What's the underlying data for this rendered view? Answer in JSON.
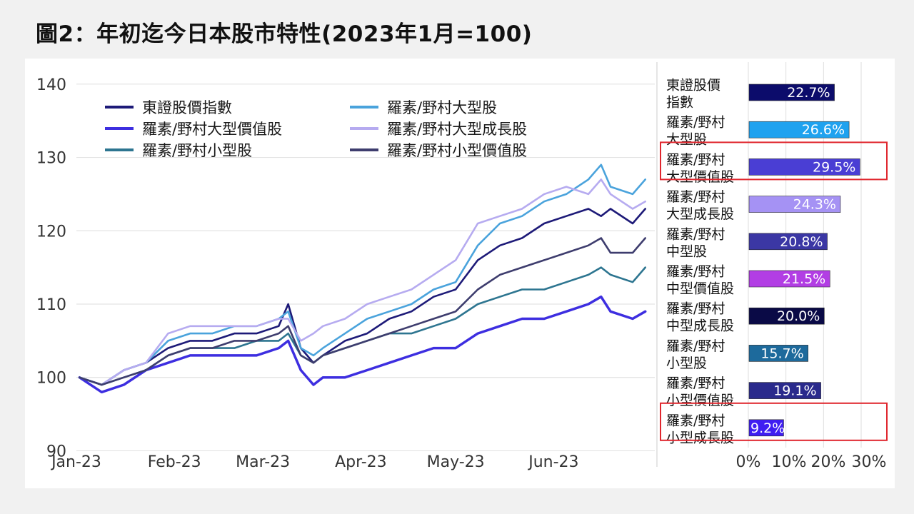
{
  "title": "圖2：年初迄今日本股市特性(2023年1月=100)",
  "chart_data": [
    {
      "type": "line",
      "y_range": [
        88,
        143
      ],
      "y_ticks": [
        90,
        100,
        110,
        120,
        130,
        140
      ],
      "y_tick_labels": [
        "90",
        "100",
        "110",
        "120",
        "130",
        "140"
      ],
      "x_tick_labels": [
        "Jan-23",
        "Feb-23",
        "Mar-23",
        "Apr-23",
        "May-23",
        "Jun-23"
      ],
      "x_dates": [
        "2023-01-02",
        "2023-01-09",
        "2023-01-16",
        "2023-01-23",
        "2023-01-30",
        "2023-02-06",
        "2023-02-13",
        "2023-02-20",
        "2023-02-27",
        "2023-03-06",
        "2023-03-09",
        "2023-03-13",
        "2023-03-17",
        "2023-03-20",
        "2023-03-27",
        "2023-04-03",
        "2023-04-10",
        "2023-04-17",
        "2023-04-24",
        "2023-05-01",
        "2023-05-08",
        "2023-05-15",
        "2023-05-22",
        "2023-05-29",
        "2023-06-05",
        "2023-06-12",
        "2023-06-16",
        "2023-06-19",
        "2023-06-26",
        "2023-06-30"
      ],
      "grid": "horizontal",
      "legend_position": "top-left",
      "series": [
        {
          "name": "東證股價指數",
          "color": "#1d1a78",
          "values": [
            100,
            99,
            101,
            102,
            104,
            105,
            105,
            106,
            106,
            107,
            110,
            104,
            102,
            103,
            105,
            106,
            108,
            109,
            111,
            112,
            116,
            118,
            119,
            121,
            122,
            123,
            122,
            123,
            121,
            123
          ]
        },
        {
          "name": "羅素/野村大型股",
          "color": "#4aa3dc",
          "values": [
            100,
            99,
            101,
            102,
            105,
            106,
            106,
            107,
            107,
            108,
            109,
            104,
            103,
            104,
            106,
            108,
            109,
            110,
            112,
            113,
            118,
            121,
            122,
            124,
            125,
            127,
            129,
            126,
            125,
            127
          ]
        },
        {
          "name": "羅素/野村大型價值股",
          "color": "#3d2ee0",
          "values": [
            100,
            98,
            99,
            101,
            102,
            103,
            103,
            103,
            103,
            104,
            105,
            101,
            99,
            100,
            100,
            101,
            102,
            103,
            104,
            104,
            106,
            107,
            108,
            108,
            109,
            110,
            111,
            109,
            108,
            109
          ]
        },
        {
          "name": "羅素/野村大型成長股",
          "color": "#b6abf0",
          "values": [
            100,
            99,
            101,
            102,
            106,
            107,
            107,
            107,
            107,
            108,
            108,
            105,
            106,
            107,
            108,
            110,
            111,
            112,
            114,
            116,
            121,
            122,
            123,
            125,
            126,
            125,
            127,
            125,
            123,
            124
          ]
        },
        {
          "name": "羅素/野村小型股",
          "color": "#2d7590",
          "values": [
            100,
            99,
            100,
            101,
            103,
            104,
            104,
            104,
            105,
            105,
            106,
            103,
            102,
            103,
            104,
            105,
            106,
            106,
            107,
            108,
            110,
            111,
            112,
            112,
            113,
            114,
            115,
            114,
            113,
            115
          ]
        },
        {
          "name": "羅素/野村小型價值股",
          "color": "#3e3d6e",
          "values": [
            100,
            99,
            100,
            101,
            103,
            104,
            104,
            105,
            105,
            106,
            107,
            103,
            102,
            103,
            104,
            105,
            106,
            107,
            108,
            109,
            112,
            114,
            115,
            116,
            117,
            118,
            119,
            117,
            117,
            119
          ]
        }
      ]
    },
    {
      "type": "bar",
      "orientation": "horizontal",
      "x_range": [
        0,
        30
      ],
      "x_tick_labels": [
        "0%",
        "10%",
        "20%",
        "30%"
      ],
      "categories": [
        "東證股價\n指數",
        "羅素/野村\n大型股",
        "羅素/野村\n大型價值股",
        "羅素/野村\n大型成長股",
        "羅素/野村\n中型股",
        "羅素/野村\n中型價值股",
        "羅素/野村\n中型成長股",
        "羅素/野村\n小型股",
        "羅素/野村\n小型價值股",
        "羅素/野村\n小型成長股"
      ],
      "values": [
        22.7,
        26.6,
        29.5,
        24.3,
        20.8,
        21.5,
        20.0,
        15.7,
        19.1,
        9.2
      ],
      "value_labels": [
        "22.7%",
        "26.6%",
        "29.5%",
        "24.3%",
        "20.8%",
        "21.5%",
        "20.0%",
        "15.7%",
        "19.1%",
        "9.2%"
      ],
      "colors": [
        "#0c0c6b",
        "#1fa2ef",
        "#4a3ed4",
        "#a592f4",
        "#3b37a4",
        "#b23ee4",
        "#0a0a46",
        "#1d6a9c",
        "#2a2a8c",
        "#3f1ef2"
      ],
      "highlighted_categories": [
        "羅素/野村\n大型價值股",
        "羅素/野村\n小型成長股"
      ],
      "highlight_color": "#e0262d"
    }
  ]
}
